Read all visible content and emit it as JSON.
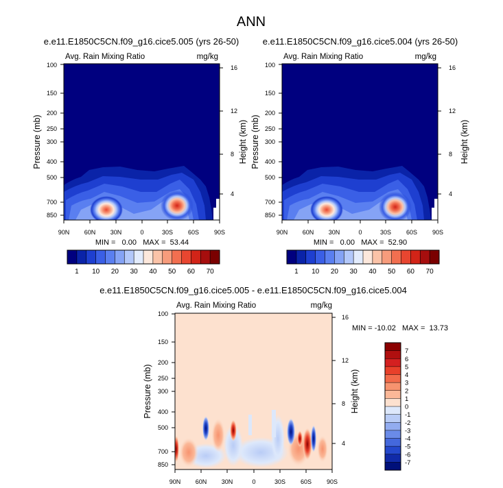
{
  "figure": {
    "title": "ANN"
  },
  "chart_data": [
    {
      "type": "heatmap",
      "title": "e.e11.E1850C5CN.f09_g16.cice5.005 (yrs 26-50)",
      "left_label": "Avg. Rain Mixing Ratio",
      "right_label": "mg/kg",
      "xlabel": "",
      "ylabel": "Pressure (mb)",
      "y2label": "Height (km)",
      "x_ticks": [
        "90N",
        "60N",
        "30N",
        "0",
        "30S",
        "60S",
        "90S"
      ],
      "y_ticks": [
        "100",
        "150",
        "200",
        "250",
        "300",
        "400",
        "500",
        "700",
        "850"
      ],
      "y2_ticks": [
        "16",
        "12",
        "8",
        "4"
      ],
      "stats": "MIN =   0.00   MAX =  53.44",
      "min": 0.0,
      "max": 53.44,
      "colorbar_ticks": [
        "1",
        "10",
        "20",
        "30",
        "40",
        "50",
        "60",
        "70"
      ],
      "colorbar_levels": [
        1,
        10,
        20,
        30,
        40,
        50,
        60,
        70
      ],
      "colors": [
        "#00007f",
        "#0a23a8",
        "#1e3fd0",
        "#3a5fe6",
        "#5a7ff0",
        "#85a3f5",
        "#b3c8fa",
        "#e3ecfd",
        "#fde8dc",
        "#fbc3a8",
        "#f79c7c",
        "#f26f50",
        "#e84630",
        "#d22418",
        "#a60e0e",
        "#7a0000"
      ]
    },
    {
      "type": "heatmap",
      "title": "e.e11.E1850C5CN.f09_g16.cice5.004 (yrs 26-50)",
      "left_label": "Avg. Rain Mixing Ratio",
      "right_label": "mg/kg",
      "xlabel": "",
      "ylabel": "Pressure (mb)",
      "y2label": "Height (km)",
      "x_ticks": [
        "90N",
        "60N",
        "30N",
        "0",
        "30S",
        "60S",
        "90S"
      ],
      "y_ticks": [
        "100",
        "150",
        "200",
        "250",
        "300",
        "400",
        "500",
        "700",
        "850"
      ],
      "y2_ticks": [
        "16",
        "12",
        "8",
        "4"
      ],
      "stats": "MIN =   0.00   MAX =  52.90",
      "min": 0.0,
      "max": 52.9,
      "colorbar_ticks": [
        "1",
        "10",
        "20",
        "30",
        "40",
        "50",
        "60",
        "70"
      ],
      "colorbar_levels": [
        1,
        10,
        20,
        30,
        40,
        50,
        60,
        70
      ],
      "colors": [
        "#00007f",
        "#0a23a8",
        "#1e3fd0",
        "#3a5fe6",
        "#5a7ff0",
        "#85a3f5",
        "#b3c8fa",
        "#e3ecfd",
        "#fde8dc",
        "#fbc3a8",
        "#f79c7c",
        "#f26f50",
        "#e84630",
        "#d22418",
        "#a60e0e",
        "#7a0000"
      ]
    },
    {
      "type": "heatmap",
      "title": "e.e11.E1850C5CN.f09_g16.cice5.005 - e.e11.E1850C5CN.f09_g16.cice5.004",
      "left_label": "Avg. Rain Mixing Ratio",
      "right_label": "mg/kg",
      "xlabel": "",
      "ylabel": "Pressure (mb)",
      "y2label": "Height (km)",
      "x_ticks": [
        "90N",
        "60N",
        "30N",
        "0",
        "30S",
        "60S",
        "90S"
      ],
      "y_ticks": [
        "100",
        "150",
        "200",
        "250",
        "300",
        "400",
        "500",
        "700",
        "850"
      ],
      "y2_ticks": [
        "16",
        "12",
        "8",
        "4"
      ],
      "stats": "MIN = -10.02   MAX =  13.73",
      "min": -10.02,
      "max": 13.73,
      "colorbar_ticks": [
        "7",
        "6",
        "5",
        "4",
        "3",
        "2",
        "1",
        "0",
        "-1",
        "-2",
        "-3",
        "-4",
        "-5",
        "-6",
        "-7"
      ],
      "colorbar_levels": [
        7,
        6,
        5,
        4,
        3,
        2,
        1,
        0,
        -1,
        -2,
        -3,
        -4,
        -5,
        -6,
        -7
      ],
      "colors": [
        "#8b0000",
        "#b00f0f",
        "#d42020",
        "#e8402a",
        "#f26a4a",
        "#f7936f",
        "#fbb898",
        "#fde1cf",
        "#dde8fb",
        "#b9ccf6",
        "#92acf0",
        "#6a8be8",
        "#4468dc",
        "#2448cc",
        "#102aa8",
        "#00107a"
      ]
    }
  ]
}
